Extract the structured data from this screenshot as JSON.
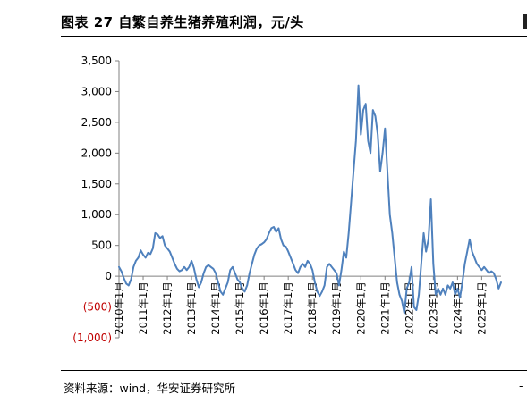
{
  "header": {
    "title": "图表 27 自繁自养生猪养殖利润，元/头"
  },
  "footer": {
    "source": "资料来源：wind，华安证券研究所",
    "edge_glyph": "-"
  },
  "colors": {
    "line": "#4f81bd",
    "negative_tick": "#c00000",
    "axis": "#808080"
  },
  "chart_data": {
    "type": "line",
    "title": "自繁自养生猪养殖利润，元/头",
    "xlabel": "",
    "ylabel": "",
    "ylim": [
      -1000,
      3500
    ],
    "y_ticks": [
      {
        "value": 3500,
        "label": "3,500"
      },
      {
        "value": 3000,
        "label": "3,000"
      },
      {
        "value": 2500,
        "label": "2,500"
      },
      {
        "value": 2000,
        "label": "2,000"
      },
      {
        "value": 1500,
        "label": "1,500"
      },
      {
        "value": 1000,
        "label": "1,000"
      },
      {
        "value": 500,
        "label": "500"
      },
      {
        "value": 0,
        "label": "0"
      },
      {
        "value": -500,
        "label": "(500)"
      },
      {
        "value": -1000,
        "label": "(1,000)"
      }
    ],
    "x_ticks": [
      "2010年1月",
      "2011年1月",
      "2012年1月",
      "2013年1月",
      "2014年1月",
      "2015年1月",
      "2016年1月",
      "2017年1月",
      "2018年1月",
      "2019年1月",
      "2020年1月",
      "2021年1月",
      "2022年1月",
      "2023年1月",
      "2024年1月",
      "2025年1月"
    ],
    "x_start": 2010.0,
    "x_end": 2025.8,
    "series": [
      {
        "values": [
          [
            2010.0,
            150
          ],
          [
            2010.1,
            80
          ],
          [
            2010.2,
            -30
          ],
          [
            2010.3,
            -120
          ],
          [
            2010.4,
            -150
          ],
          [
            2010.5,
            -50
          ],
          [
            2010.6,
            150
          ],
          [
            2010.7,
            250
          ],
          [
            2010.8,
            300
          ],
          [
            2010.9,
            420
          ],
          [
            2011.0,
            350
          ],
          [
            2011.1,
            300
          ],
          [
            2011.2,
            380
          ],
          [
            2011.3,
            360
          ],
          [
            2011.4,
            450
          ],
          [
            2011.5,
            700
          ],
          [
            2011.6,
            680
          ],
          [
            2011.7,
            620
          ],
          [
            2011.8,
            650
          ],
          [
            2011.9,
            500
          ],
          [
            2012.0,
            450
          ],
          [
            2012.1,
            400
          ],
          [
            2012.2,
            300
          ],
          [
            2012.3,
            200
          ],
          [
            2012.4,
            120
          ],
          [
            2012.5,
            80
          ],
          [
            2012.6,
            100
          ],
          [
            2012.7,
            150
          ],
          [
            2012.8,
            100
          ],
          [
            2012.9,
            150
          ],
          [
            2013.0,
            250
          ],
          [
            2013.1,
            130
          ],
          [
            2013.2,
            -50
          ],
          [
            2013.3,
            -180
          ],
          [
            2013.4,
            -100
          ],
          [
            2013.5,
            50
          ],
          [
            2013.6,
            150
          ],
          [
            2013.7,
            180
          ],
          [
            2013.8,
            150
          ],
          [
            2013.9,
            120
          ],
          [
            2014.0,
            50
          ],
          [
            2014.1,
            -100
          ],
          [
            2014.2,
            -250
          ],
          [
            2014.3,
            -300
          ],
          [
            2014.4,
            -200
          ],
          [
            2014.5,
            -100
          ],
          [
            2014.6,
            100
          ],
          [
            2014.7,
            150
          ],
          [
            2014.8,
            50
          ],
          [
            2014.9,
            -50
          ],
          [
            2015.0,
            -100
          ],
          [
            2015.1,
            -200
          ],
          [
            2015.2,
            -250
          ],
          [
            2015.3,
            -150
          ],
          [
            2015.4,
            50
          ],
          [
            2015.5,
            200
          ],
          [
            2015.6,
            350
          ],
          [
            2015.7,
            450
          ],
          [
            2015.8,
            500
          ],
          [
            2015.9,
            520
          ],
          [
            2016.0,
            550
          ],
          [
            2016.1,
            600
          ],
          [
            2016.2,
            700
          ],
          [
            2016.3,
            780
          ],
          [
            2016.4,
            800
          ],
          [
            2016.5,
            720
          ],
          [
            2016.6,
            780
          ],
          [
            2016.7,
            600
          ],
          [
            2016.8,
            500
          ],
          [
            2016.9,
            480
          ],
          [
            2017.0,
            400
          ],
          [
            2017.1,
            300
          ],
          [
            2017.2,
            200
          ],
          [
            2017.3,
            100
          ],
          [
            2017.4,
            50
          ],
          [
            2017.5,
            150
          ],
          [
            2017.6,
            200
          ],
          [
            2017.7,
            150
          ],
          [
            2017.8,
            250
          ],
          [
            2017.9,
            200
          ],
          [
            2018.0,
            100
          ],
          [
            2018.1,
            -100
          ],
          [
            2018.2,
            -250
          ],
          [
            2018.3,
            -320
          ],
          [
            2018.4,
            -250
          ],
          [
            2018.5,
            -150
          ],
          [
            2018.6,
            150
          ],
          [
            2018.7,
            200
          ],
          [
            2018.8,
            150
          ],
          [
            2018.9,
            100
          ],
          [
            2019.0,
            50
          ],
          [
            2019.1,
            -150
          ],
          [
            2019.2,
            100
          ],
          [
            2019.3,
            400
          ],
          [
            2019.4,
            300
          ],
          [
            2019.5,
            700
          ],
          [
            2019.6,
            1200
          ],
          [
            2019.7,
            1700
          ],
          [
            2019.8,
            2200
          ],
          [
            2019.9,
            3100
          ],
          [
            2020.0,
            2300
          ],
          [
            2020.1,
            2700
          ],
          [
            2020.2,
            2800
          ],
          [
            2020.3,
            2200
          ],
          [
            2020.4,
            2000
          ],
          [
            2020.5,
            2700
          ],
          [
            2020.6,
            2600
          ],
          [
            2020.7,
            2300
          ],
          [
            2020.8,
            1700
          ],
          [
            2020.9,
            2000
          ],
          [
            2021.0,
            2400
          ],
          [
            2021.1,
            1700
          ],
          [
            2021.2,
            1000
          ],
          [
            2021.3,
            700
          ],
          [
            2021.4,
            300
          ],
          [
            2021.5,
            -100
          ],
          [
            2021.6,
            -300
          ],
          [
            2021.7,
            -400
          ],
          [
            2021.8,
            -600
          ],
          [
            2021.9,
            -200
          ],
          [
            2022.0,
            -100
          ],
          [
            2022.1,
            150
          ],
          [
            2022.2,
            -500
          ],
          [
            2022.3,
            -550
          ],
          [
            2022.4,
            -300
          ],
          [
            2022.5,
            200
          ],
          [
            2022.6,
            700
          ],
          [
            2022.7,
            400
          ],
          [
            2022.8,
            600
          ],
          [
            2022.9,
            1250
          ],
          [
            2023.0,
            200
          ],
          [
            2023.1,
            -300
          ],
          [
            2023.2,
            -200
          ],
          [
            2023.3,
            -300
          ],
          [
            2023.4,
            -200
          ],
          [
            2023.5,
            -300
          ],
          [
            2023.6,
            -150
          ],
          [
            2023.7,
            -200
          ],
          [
            2023.8,
            -100
          ],
          [
            2023.9,
            -300
          ],
          [
            2024.0,
            -200
          ],
          [
            2024.1,
            -350
          ],
          [
            2024.2,
            -100
          ],
          [
            2024.3,
            200
          ],
          [
            2024.4,
            400
          ],
          [
            2024.5,
            600
          ],
          [
            2024.6,
            400
          ],
          [
            2024.7,
            300
          ],
          [
            2024.8,
            200
          ],
          [
            2024.9,
            150
          ],
          [
            2025.0,
            100
          ],
          [
            2025.1,
            150
          ],
          [
            2025.2,
            100
          ],
          [
            2025.3,
            50
          ],
          [
            2025.4,
            80
          ],
          [
            2025.5,
            50
          ],
          [
            2025.6,
            -50
          ],
          [
            2025.7,
            -200
          ],
          [
            2025.8,
            -100
          ]
        ]
      }
    ]
  }
}
